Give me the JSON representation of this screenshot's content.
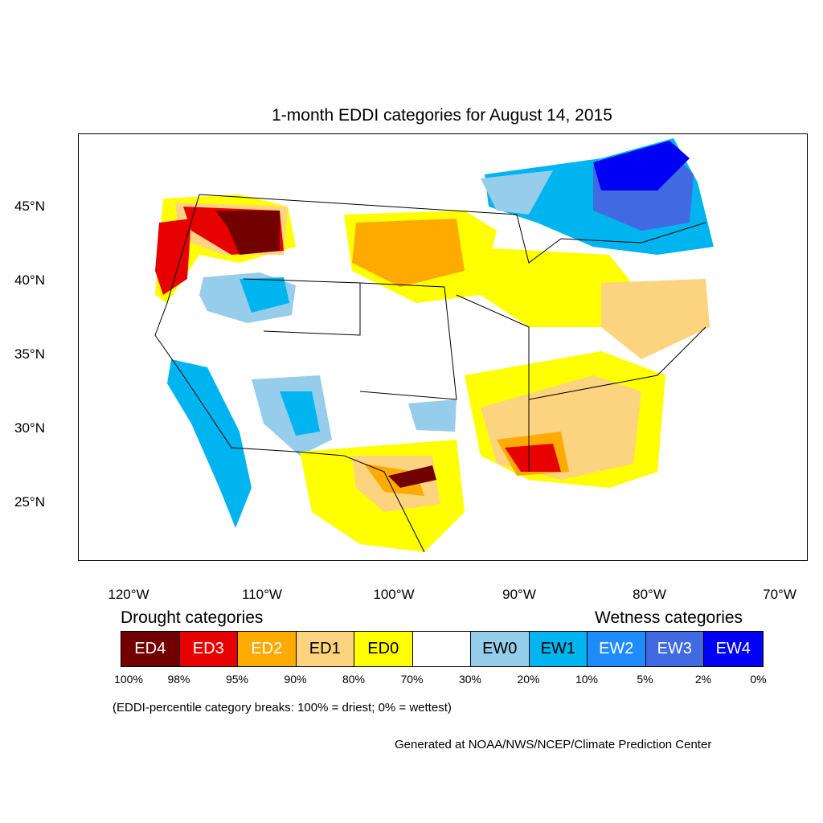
{
  "title": "1-month EDDI categories for August 14, 2015",
  "lat_labels": [
    "45°N",
    "40°N",
    "35°N",
    "30°N",
    "25°N"
  ],
  "lon_labels": [
    "120°W",
    "110°W",
    "100°W",
    "90°W",
    "80°W",
    "70°W"
  ],
  "legend": {
    "drought_heading": "Drought categories",
    "wetness_heading": "Wetness categories",
    "categories": [
      {
        "label": "ED4",
        "color": "#730000",
        "text_color": "#ffffff"
      },
      {
        "label": "ED3",
        "color": "#e60000",
        "text_color": "#ffffff"
      },
      {
        "label": "ED2",
        "color": "#ffaa00",
        "text_color": "#ffffff"
      },
      {
        "label": "ED1",
        "color": "#fcd37f",
        "text_color": "#000000"
      },
      {
        "label": "ED0",
        "color": "#ffff00",
        "text_color": "#000000"
      },
      {
        "label": "",
        "color": "#ffffff",
        "text_color": "#000000"
      },
      {
        "label": "EW0",
        "color": "#96cdeb",
        "text_color": "#000000"
      },
      {
        "label": "EW1",
        "color": "#00b4f0",
        "text_color": "#000000"
      },
      {
        "label": "EW2",
        "color": "#1e8cff",
        "text_color": "#ffffff"
      },
      {
        "label": "EW3",
        "color": "#4169e1",
        "text_color": "#ffffff"
      },
      {
        "label": "EW4",
        "color": "#0000f5",
        "text_color": "#ffffff"
      }
    ],
    "percentiles": [
      "100%",
      "98%",
      "95%",
      "90%",
      "80%",
      "70%",
      "30%",
      "20%",
      "10%",
      "5%",
      "2%",
      "0%"
    ]
  },
  "note": "(EDDI-percentile category breaks: 100% = driest; 0% = wettest)",
  "credit": "Generated at NOAA/NWS/NCEP/Climate Prediction Center"
}
